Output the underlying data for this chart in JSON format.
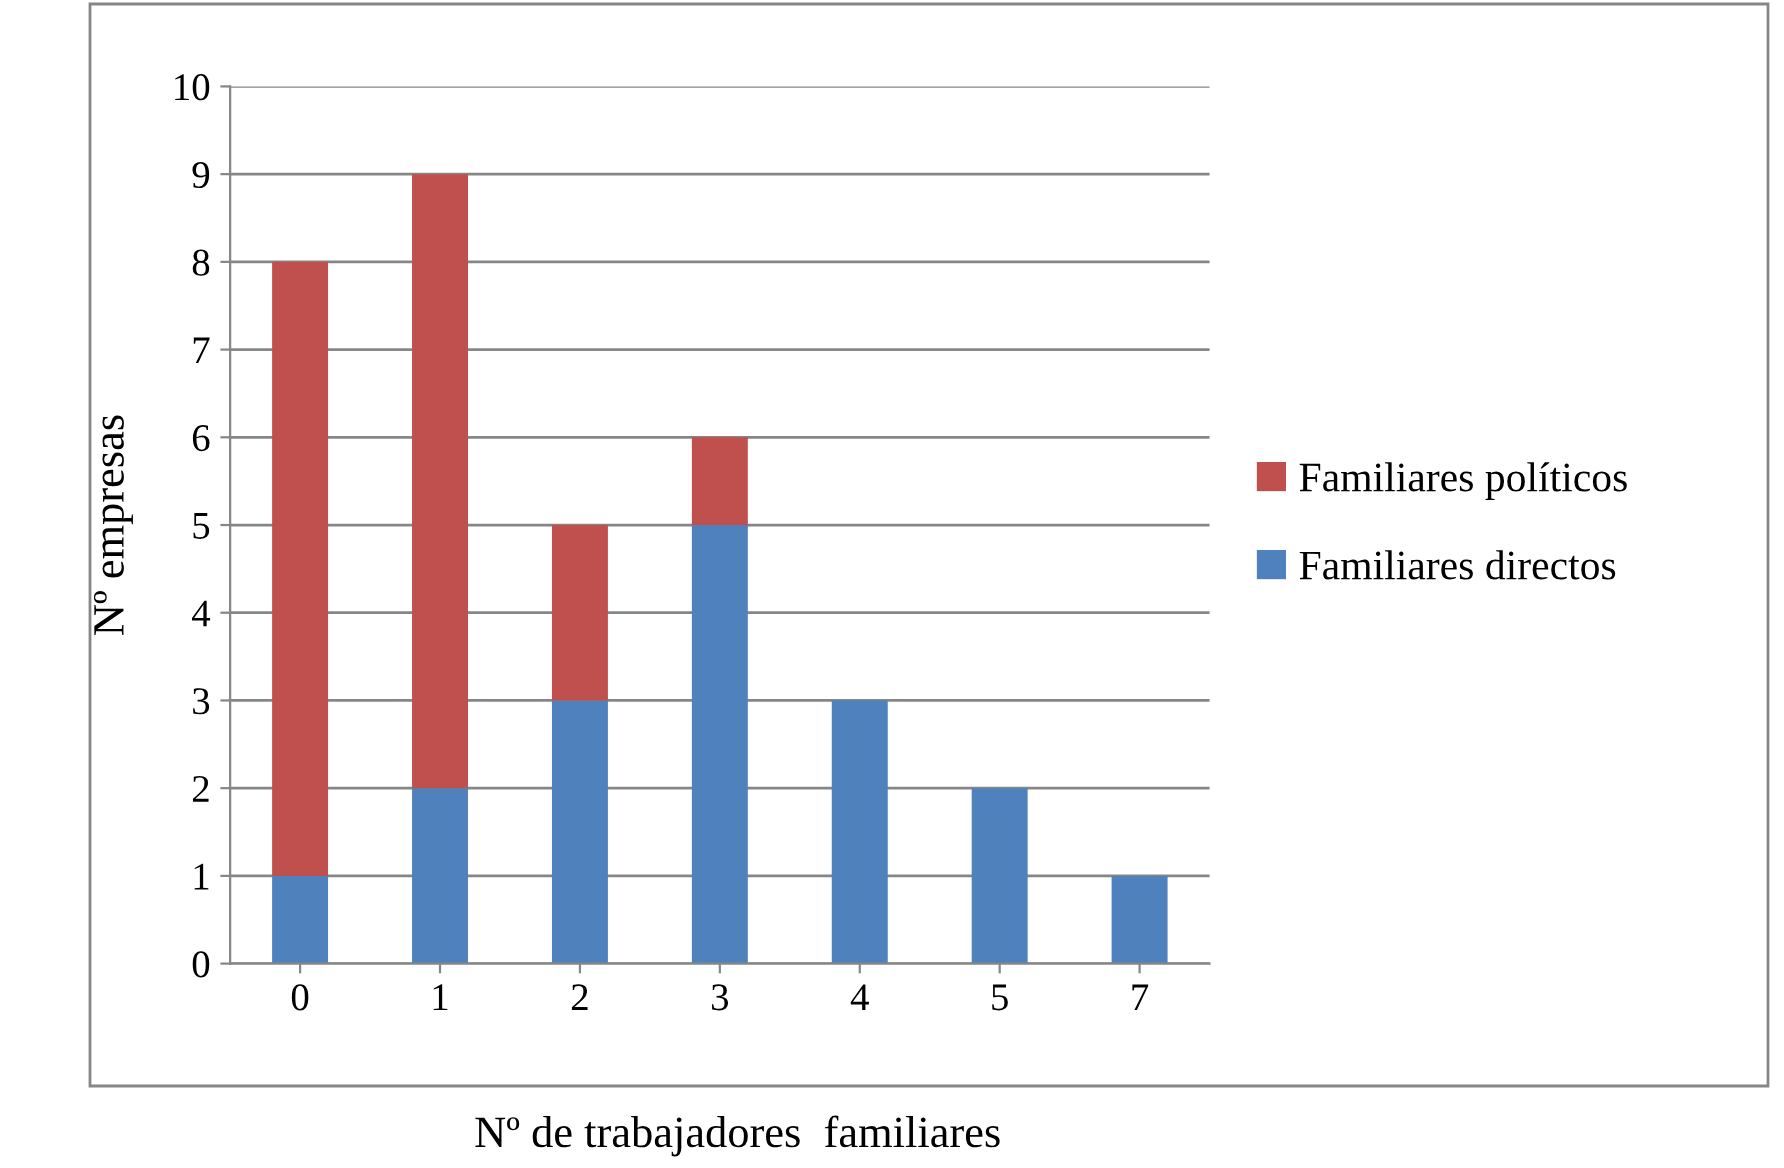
{
  "chart_data": {
    "type": "bar",
    "stacked": true,
    "xlabel": "Nº de trabajadores  familiares",
    "ylabel": "Nº empresas",
    "categories": [
      "0",
      "1",
      "2",
      "3",
      "4",
      "5",
      "7"
    ],
    "series": [
      {
        "name": "Familiares directos",
        "color": "#4f81bd",
        "values": [
          1,
          2,
          3,
          5,
          3,
          2,
          1
        ]
      },
      {
        "name": "Familiares políticos",
        "color": "#c0504d",
        "values": [
          7,
          7,
          2,
          1,
          0,
          0,
          0
        ]
      }
    ],
    "ylim": [
      0,
      10
    ],
    "yticks": [
      0,
      1,
      2,
      3,
      4,
      5,
      6,
      7,
      8,
      9,
      10
    ],
    "grid": "y",
    "legend": "right"
  }
}
